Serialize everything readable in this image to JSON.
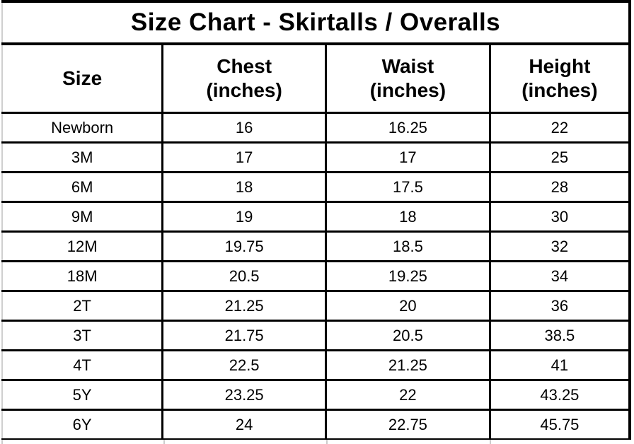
{
  "title": "Size Chart - Skirtalls / Overalls",
  "columns": [
    {
      "label": "Size",
      "unit": ""
    },
    {
      "label": "Chest",
      "unit": "(inches)"
    },
    {
      "label": "Waist",
      "unit": "(inches)"
    },
    {
      "label": "Height",
      "unit": "(inches)"
    }
  ],
  "rows": [
    {
      "size": "Newborn",
      "chest": "16",
      "waist": "16.25",
      "height": "22"
    },
    {
      "size": "3M",
      "chest": "17",
      "waist": "17",
      "height": "25"
    },
    {
      "size": "6M",
      "chest": "18",
      "waist": "17.5",
      "height": "28"
    },
    {
      "size": "9M",
      "chest": "19",
      "waist": "18",
      "height": "30"
    },
    {
      "size": "12M",
      "chest": "19.75",
      "waist": "18.5",
      "height": "32"
    },
    {
      "size": "18M",
      "chest": "20.5",
      "waist": "19.25",
      "height": "34"
    },
    {
      "size": "2T",
      "chest": "21.25",
      "waist": "20",
      "height": "36"
    },
    {
      "size": "3T",
      "chest": "21.75",
      "waist": "20.5",
      "height": "38.5"
    },
    {
      "size": "4T",
      "chest": "22.5",
      "waist": "21.25",
      "height": "41"
    },
    {
      "size": "5Y",
      "chest": "23.25",
      "waist": "22",
      "height": "43.25"
    },
    {
      "size": "6Y",
      "chest": "24",
      "waist": "22.75",
      "height": "45.75"
    }
  ],
  "colors": {
    "border": "#000000",
    "background": "#ffffff",
    "left_edge_line": "#cfcfcf",
    "faint_divider": "#cccccc"
  },
  "chart_data": {
    "type": "table",
    "title": "Size Chart - Skirtalls / Overalls",
    "columns": [
      "Size",
      "Chest (inches)",
      "Waist (inches)",
      "Height (inches)"
    ],
    "rows": [
      [
        "Newborn",
        16,
        16.25,
        22
      ],
      [
        "3M",
        17,
        17,
        25
      ],
      [
        "6M",
        18,
        17.5,
        28
      ],
      [
        "9M",
        19,
        18,
        30
      ],
      [
        "12M",
        19.75,
        18.5,
        32
      ],
      [
        "18M",
        20.5,
        19.25,
        34
      ],
      [
        "2T",
        21.25,
        20,
        36
      ],
      [
        "3T",
        21.75,
        20.5,
        38.5
      ],
      [
        "4T",
        22.5,
        21.25,
        41
      ],
      [
        "5Y",
        23.25,
        22,
        43.25
      ],
      [
        "6Y",
        24,
        22.75,
        45.75
      ]
    ]
  }
}
